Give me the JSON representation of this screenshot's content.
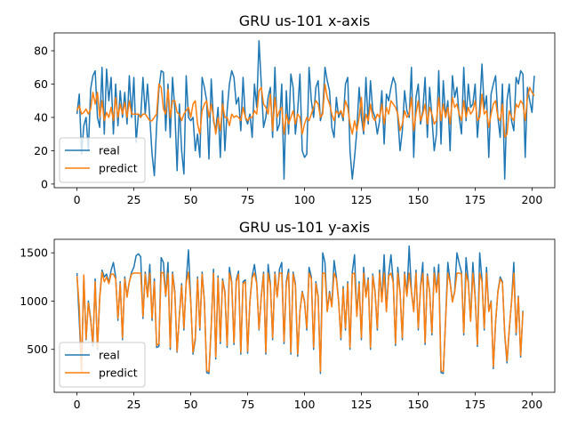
{
  "chart_data": [
    {
      "type": "line",
      "title": "GRU us-101 x-axis",
      "xlabel": "",
      "ylabel": "",
      "xlim": [
        -10,
        210
      ],
      "ylim": [
        -2.2,
        90.7
      ],
      "xticks": [
        0,
        25,
        50,
        75,
        100,
        125,
        150,
        175,
        200
      ],
      "yticks": [
        0,
        20,
        40,
        60,
        80
      ],
      "grid": false,
      "legend": "lower-left",
      "series": [
        {
          "name": "real",
          "color": "#1f77b4",
          "values": [
            42,
            54,
            18,
            35,
            40,
            20,
            57,
            65,
            68,
            40,
            34,
            70,
            30,
            69,
            50,
            64,
            30,
            60,
            35,
            56,
            40,
            55,
            36,
            65,
            40,
            64,
            25,
            42,
            40,
            64,
            42,
            60,
            40,
            18,
            5,
            35,
            57,
            68,
            67,
            32,
            60,
            28,
            64,
            45,
            8,
            48,
            20,
            6,
            65,
            40,
            38,
            40,
            20,
            30,
            16,
            64,
            58,
            50,
            15,
            63,
            38,
            32,
            46,
            16,
            56,
            20,
            44,
            60,
            68,
            64,
            48,
            52,
            32,
            64,
            40,
            36,
            42,
            28,
            60,
            46,
            86,
            60,
            34,
            40,
            52,
            58,
            28,
            70,
            32,
            36,
            60,
            3,
            56,
            30,
            66,
            58,
            30,
            44,
            66,
            20,
            16,
            18,
            70,
            50,
            40,
            58,
            62,
            38,
            44,
            70,
            62,
            56,
            34,
            28,
            52,
            40,
            44,
            38,
            60,
            64,
            20,
            3,
            16,
            32,
            58,
            40,
            30,
            64,
            36,
            62,
            44,
            40,
            30,
            38,
            56,
            24,
            54,
            50,
            58,
            64,
            60,
            40,
            20,
            32,
            56,
            44,
            40,
            70,
            16,
            52,
            60,
            36,
            44,
            64,
            28,
            58,
            40,
            20,
            30,
            68,
            24,
            62,
            40,
            50,
            20,
            65,
            52,
            58,
            40,
            30,
            70,
            38,
            60,
            46,
            48,
            60,
            28,
            46,
            72,
            45,
            53,
            16,
            54,
            60,
            65,
            40,
            28,
            60,
            3,
            50,
            60,
            38,
            32,
            64,
            60,
            68,
            66,
            16,
            58,
            50,
            43,
            65
          ]
        },
        {
          "name": "predict",
          "color": "#ff7f0e",
          "values": [
            44,
            47,
            42,
            43,
            45,
            42,
            45,
            55,
            48,
            55,
            40,
            50,
            38,
            43,
            40,
            46,
            38,
            52,
            40,
            48,
            42,
            49,
            40,
            50,
            42,
            42,
            42,
            42,
            40,
            42,
            42,
            40,
            38,
            38,
            40,
            42,
            60,
            58,
            45,
            42,
            57,
            40,
            50,
            50,
            43,
            42,
            38,
            42,
            44,
            46,
            40,
            48,
            50,
            36,
            30,
            44,
            48,
            50,
            40,
            48,
            40,
            30,
            40,
            32,
            48,
            40,
            40,
            35,
            42,
            40,
            41,
            40,
            38,
            46,
            40,
            38,
            40,
            40,
            44,
            42,
            56,
            58,
            48,
            46,
            42,
            54,
            32,
            52,
            40,
            44,
            46,
            30,
            42,
            36,
            40,
            44,
            36,
            42,
            40,
            30,
            36,
            40,
            38,
            42,
            46,
            50,
            48,
            40,
            42,
            60,
            52,
            48,
            42,
            38,
            44,
            42,
            44,
            40,
            50,
            46,
            36,
            30,
            38,
            32,
            40,
            52,
            32,
            42,
            38,
            48,
            40,
            38,
            42,
            40,
            48,
            36,
            46,
            42,
            50,
            48,
            46,
            42,
            32,
            36,
            44,
            40,
            42,
            52,
            32,
            42,
            50,
            38,
            42,
            48,
            36,
            46,
            42,
            36,
            38,
            52,
            38,
            48,
            40,
            46,
            36,
            52,
            46,
            48,
            42,
            38,
            50,
            40,
            46,
            42,
            44,
            50,
            38,
            40,
            54,
            42,
            44,
            34,
            42,
            48,
            50,
            40,
            38,
            48,
            28,
            30,
            44,
            40,
            38,
            48,
            46,
            50,
            48,
            38,
            52,
            58,
            55,
            53
          ]
        }
      ]
    },
    {
      "type": "line",
      "title": "GRU us-101 y-axis",
      "xlabel": "",
      "ylabel": "",
      "xlim": [
        -10,
        210
      ],
      "ylim": [
        55,
        1640
      ],
      "xticks": [
        0,
        25,
        50,
        75,
        100,
        125,
        150,
        175,
        200
      ],
      "yticks": [
        500,
        1000,
        1500
      ],
      "grid": false,
      "legend": "lower-left",
      "series": [
        {
          "name": "real",
          "color": "#1f77b4",
          "values": [
            1290,
            800,
            300,
            1250,
            600,
            1000,
            820,
            530,
            1230,
            500,
            1050,
            1320,
            1250,
            1280,
            1190,
            1320,
            1400,
            1250,
            800,
            1200,
            600,
            1250,
            1050,
            1200,
            1300,
            1350,
            1470,
            1490,
            1460,
            820,
            1300,
            1050,
            1380,
            800,
            1230,
            520,
            530,
            1450,
            1400,
            1050,
            1400,
            500,
            1300,
            1100,
            470,
            850,
            1180,
            700,
            1200,
            1530,
            1000,
            450,
            600,
            1250,
            700,
            1300,
            1000,
            260,
            250,
            730,
            1330,
            400,
            1260,
            560,
            1230,
            1100,
            520,
            1350,
            1200,
            550,
            1220,
            1310,
            450,
            1200,
            1220,
            460,
            1000,
            1260,
            1380,
            1190,
            700,
            1050,
            1300,
            450,
            1380,
            1180,
            600,
            1300,
            1050,
            1330,
            1400,
            560,
            1200,
            1330,
            450,
            1300,
            1180,
            430,
            900,
            1100,
            1000,
            700,
            1350,
            1250,
            500,
            1200,
            1050,
            250,
            1500,
            1400,
            900,
            1100,
            950,
            1420,
            1250,
            1000,
            600,
            1150,
            700,
            1200,
            500,
            1300,
            1480,
            850,
            1200,
            600,
            1350,
            1050,
            1240,
            500,
            1280,
            1100,
            700,
            1320,
            1000,
            1480,
            900,
            1280,
            1480,
            1200,
            540,
            1350,
            1100,
            600,
            1300,
            1060,
            1570,
            1100,
            900,
            1320,
            700,
            1150,
            1400,
            550,
            1280,
            1100,
            650,
            1350,
            1100,
            1380,
            260,
            250,
            800,
            1400,
            1200,
            1000,
            1100,
            1500,
            1390,
            1300,
            650,
            1450,
            1200,
            800,
            1400,
            1050,
            530,
            1500,
            1220,
            700,
            1350,
            900,
            1000,
            300,
            780,
            1100,
            1250,
            1200,
            650,
            360,
            700,
            1000,
            1400,
            650,
            1050,
            420,
            900
          ]
        },
        {
          "name": "predict",
          "color": "#ff7f0e",
          "values": [
            1260,
            950,
            260,
            1270,
            610,
            980,
            800,
            560,
            1200,
            520,
            1030,
            1300,
            1200,
            1250,
            1180,
            1280,
            1280,
            1230,
            820,
            1180,
            620,
            1230,
            1040,
            1200,
            1280,
            1290,
            1290,
            1290,
            1290,
            840,
            1280,
            1040,
            1290,
            820,
            1200,
            540,
            560,
            1300,
            1290,
            1060,
            1290,
            520,
            1280,
            1080,
            480,
            840,
            1160,
            720,
            1190,
            1300,
            990,
            470,
            620,
            1230,
            720,
            1280,
            990,
            280,
            270,
            740,
            1290,
            420,
            1240,
            580,
            1210,
            1090,
            540,
            1290,
            1190,
            570,
            1200,
            1280,
            470,
            1180,
            1200,
            480,
            990,
            1240,
            1290,
            1180,
            710,
            1040,
            1280,
            470,
            1290,
            1160,
            620,
            1280,
            1040,
            1290,
            1290,
            580,
            1180,
            1290,
            470,
            1280,
            1160,
            450,
            890,
            1090,
            990,
            720,
            1290,
            1230,
            520,
            1180,
            1040,
            270,
            1290,
            1290,
            890,
            1080,
            940,
            1290,
            1230,
            990,
            620,
            1130,
            720,
            1180,
            520,
            1280,
            1290,
            840,
            1180,
            620,
            1290,
            1040,
            1220,
            520,
            1260,
            1090,
            720,
            1290,
            990,
            1290,
            890,
            1260,
            1290,
            1190,
            560,
            1290,
            1090,
            620,
            1280,
            1050,
            1290,
            1090,
            890,
            1290,
            720,
            1140,
            1290,
            570,
            1260,
            1090,
            670,
            1290,
            1090,
            1290,
            280,
            270,
            790,
            1290,
            1190,
            990,
            1090,
            1290,
            1290,
            1280,
            670,
            1290,
            1190,
            790,
            1290,
            1040,
            550,
            1290,
            1200,
            720,
            1290,
            890,
            990,
            320,
            790,
            1090,
            1230,
            1190,
            670,
            380,
            720,
            990,
            1290,
            670,
            1040,
            440,
            890
          ]
        }
      ]
    }
  ]
}
